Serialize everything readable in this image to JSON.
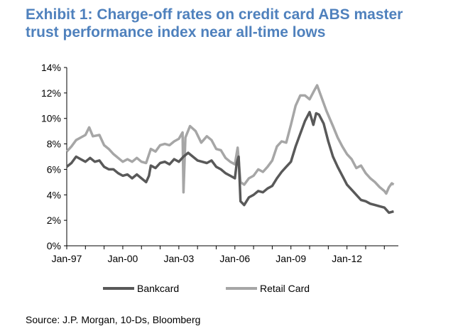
{
  "title_line1": "Exhibit 1: Charge-off rates on credit card ABS master",
  "title_line2": "trust performance index near all-time lows",
  "source": "Source: J.P. Morgan, 10-Ds, Bloomberg",
  "chart_data": {
    "type": "line",
    "title": "Exhibit 1: Charge-off rates on credit card ABS master trust performance index near all-time lows",
    "xlabel": "",
    "ylabel": "",
    "x_tick_labels": [
      "Jan-97",
      "Jan-00",
      "Jan-03",
      "Jan-06",
      "Jan-09",
      "Jan-12"
    ],
    "y_tick_labels": [
      "0%",
      "2%",
      "4%",
      "6%",
      "8%",
      "10%",
      "12%",
      "14%"
    ],
    "xlim": [
      1997.0,
      2014.75
    ],
    "ylim": [
      0,
      14
    ],
    "legend_position": "bottom",
    "grid": false,
    "series": [
      {
        "name": "Bankcard",
        "color": "#595959",
        "points": [
          [
            1997.0,
            6.2
          ],
          [
            1997.25,
            6.5
          ],
          [
            1997.5,
            7.0
          ],
          [
            1997.75,
            6.8
          ],
          [
            1998.0,
            6.6
          ],
          [
            1998.25,
            6.9
          ],
          [
            1998.5,
            6.6
          ],
          [
            1998.75,
            6.7
          ],
          [
            1999.0,
            6.2
          ],
          [
            1999.25,
            6.0
          ],
          [
            1999.5,
            6.0
          ],
          [
            1999.75,
            5.7
          ],
          [
            2000.0,
            5.5
          ],
          [
            2000.25,
            5.6
          ],
          [
            2000.5,
            5.3
          ],
          [
            2000.75,
            5.6
          ],
          [
            2001.0,
            5.3
          ],
          [
            2001.25,
            5.0
          ],
          [
            2001.4,
            5.5
          ],
          [
            2001.5,
            6.3
          ],
          [
            2001.75,
            6.1
          ],
          [
            2002.0,
            6.5
          ],
          [
            2002.25,
            6.6
          ],
          [
            2002.5,
            6.4
          ],
          [
            2002.75,
            6.8
          ],
          [
            2003.0,
            6.6
          ],
          [
            2003.25,
            7.0
          ],
          [
            2003.5,
            7.3
          ],
          [
            2003.75,
            7.0
          ],
          [
            2004.0,
            6.7
          ],
          [
            2004.25,
            6.6
          ],
          [
            2004.5,
            6.5
          ],
          [
            2004.75,
            6.7
          ],
          [
            2005.0,
            6.2
          ],
          [
            2005.25,
            6.0
          ],
          [
            2005.5,
            5.7
          ],
          [
            2005.75,
            5.5
          ],
          [
            2006.0,
            5.3
          ],
          [
            2006.1,
            6.5
          ],
          [
            2006.2,
            7.0
          ],
          [
            2006.3,
            3.5
          ],
          [
            2006.5,
            3.2
          ],
          [
            2006.75,
            3.8
          ],
          [
            2007.0,
            4.0
          ],
          [
            2007.25,
            4.3
          ],
          [
            2007.5,
            4.2
          ],
          [
            2007.75,
            4.5
          ],
          [
            2008.0,
            4.7
          ],
          [
            2008.25,
            5.3
          ],
          [
            2008.5,
            5.8
          ],
          [
            2008.75,
            6.2
          ],
          [
            2009.0,
            6.6
          ],
          [
            2009.25,
            7.8
          ],
          [
            2009.5,
            8.8
          ],
          [
            2009.75,
            9.8
          ],
          [
            2010.0,
            10.5
          ],
          [
            2010.2,
            9.5
          ],
          [
            2010.35,
            10.4
          ],
          [
            2010.5,
            10.3
          ],
          [
            2010.75,
            9.6
          ],
          [
            2011.0,
            8.2
          ],
          [
            2011.25,
            7.0
          ],
          [
            2011.5,
            6.2
          ],
          [
            2011.75,
            5.5
          ],
          [
            2012.0,
            4.8
          ],
          [
            2012.25,
            4.4
          ],
          [
            2012.5,
            4.0
          ],
          [
            2012.75,
            3.6
          ],
          [
            2013.0,
            3.5
          ],
          [
            2013.25,
            3.3
          ],
          [
            2013.5,
            3.2
          ],
          [
            2013.75,
            3.1
          ],
          [
            2014.0,
            3.0
          ],
          [
            2014.25,
            2.6
          ],
          [
            2014.5,
            2.7
          ]
        ]
      },
      {
        "name": "Retail Card",
        "color": "#a6a6a6",
        "points": [
          [
            1997.0,
            7.4
          ],
          [
            1997.25,
            7.8
          ],
          [
            1997.5,
            8.3
          ],
          [
            1997.75,
            8.5
          ],
          [
            1998.0,
            8.7
          ],
          [
            1998.2,
            9.3
          ],
          [
            1998.4,
            8.6
          ],
          [
            1998.75,
            8.7
          ],
          [
            1999.0,
            7.9
          ],
          [
            1999.25,
            7.6
          ],
          [
            1999.5,
            7.2
          ],
          [
            1999.75,
            6.9
          ],
          [
            2000.0,
            6.6
          ],
          [
            2000.25,
            6.8
          ],
          [
            2000.5,
            6.6
          ],
          [
            2000.75,
            6.9
          ],
          [
            2001.0,
            6.6
          ],
          [
            2001.25,
            6.5
          ],
          [
            2001.5,
            7.6
          ],
          [
            2001.75,
            7.4
          ],
          [
            2002.0,
            7.9
          ],
          [
            2002.25,
            8.0
          ],
          [
            2002.5,
            7.9
          ],
          [
            2002.75,
            8.2
          ],
          [
            2003.0,
            8.4
          ],
          [
            2003.2,
            8.9
          ],
          [
            2003.25,
            4.2
          ],
          [
            2003.35,
            8.5
          ],
          [
            2003.6,
            9.4
          ],
          [
            2003.9,
            9.0
          ],
          [
            2004.2,
            8.1
          ],
          [
            2004.5,
            8.6
          ],
          [
            2004.75,
            8.3
          ],
          [
            2005.0,
            7.6
          ],
          [
            2005.25,
            7.5
          ],
          [
            2005.5,
            6.9
          ],
          [
            2005.75,
            6.6
          ],
          [
            2006.0,
            6.4
          ],
          [
            2006.15,
            7.7
          ],
          [
            2006.3,
            5.0
          ],
          [
            2006.5,
            4.8
          ],
          [
            2006.75,
            5.3
          ],
          [
            2007.0,
            5.5
          ],
          [
            2007.25,
            6.0
          ],
          [
            2007.5,
            5.8
          ],
          [
            2007.75,
            6.2
          ],
          [
            2008.0,
            6.7
          ],
          [
            2008.25,
            7.8
          ],
          [
            2008.5,
            8.2
          ],
          [
            2008.75,
            8.1
          ],
          [
            2009.0,
            9.5
          ],
          [
            2009.25,
            11.0
          ],
          [
            2009.5,
            11.8
          ],
          [
            2009.75,
            11.8
          ],
          [
            2010.0,
            11.5
          ],
          [
            2010.25,
            12.2
          ],
          [
            2010.4,
            12.6
          ],
          [
            2010.6,
            11.8
          ],
          [
            2010.9,
            10.6
          ],
          [
            2011.25,
            9.4
          ],
          [
            2011.5,
            8.5
          ],
          [
            2011.75,
            7.8
          ],
          [
            2012.0,
            7.2
          ],
          [
            2012.25,
            6.8
          ],
          [
            2012.5,
            6.1
          ],
          [
            2012.75,
            6.3
          ],
          [
            2013.0,
            5.7
          ],
          [
            2013.25,
            5.3
          ],
          [
            2013.5,
            5.0
          ],
          [
            2013.75,
            4.6
          ],
          [
            2014.0,
            4.3
          ],
          [
            2014.1,
            4.1
          ],
          [
            2014.25,
            4.6
          ],
          [
            2014.4,
            4.9
          ],
          [
            2014.5,
            4.8
          ]
        ]
      }
    ]
  }
}
